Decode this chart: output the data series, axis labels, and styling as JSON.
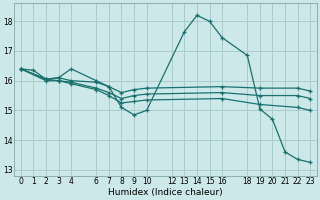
{
  "background_color": "#cce8e8",
  "grid_color": "#aacccc",
  "line_color": "#1a7070",
  "marker_color": "#1a7070",
  "xlabel": "Humidex (Indice chaleur)",
  "xlim": [
    -0.5,
    23.5
  ],
  "ylim": [
    12.8,
    18.6
  ],
  "yticks": [
    13,
    14,
    15,
    16,
    17,
    18
  ],
  "xtick_positions": [
    0,
    1,
    2,
    3,
    4,
    6,
    7,
    8,
    9,
    10,
    12,
    13,
    14,
    15,
    16,
    18,
    19,
    20,
    21,
    22,
    23
  ],
  "xtick_labels": [
    "0",
    "1",
    "2",
    "3",
    "4",
    "6",
    "7",
    "8",
    "9",
    "10",
    "12",
    "13",
    "14",
    "15",
    "16",
    "18",
    "19",
    "20",
    "21",
    "22",
    "23"
  ],
  "lines": [
    {
      "x": [
        0,
        1,
        2,
        3,
        4,
        6,
        7,
        8,
        9,
        10,
        13,
        14,
        15,
        16,
        18,
        19,
        20,
        21,
        22,
        23
      ],
      "y": [
        16.4,
        16.35,
        16.05,
        16.1,
        16.4,
        16.0,
        15.8,
        15.1,
        14.85,
        15.0,
        17.65,
        18.2,
        18.0,
        17.45,
        16.85,
        15.05,
        14.7,
        13.6,
        13.35,
        13.25
      ]
    },
    {
      "x": [
        0,
        2,
        3,
        4,
        6,
        7,
        8,
        9,
        10,
        16,
        19,
        22,
        23
      ],
      "y": [
        16.4,
        16.05,
        16.1,
        16.0,
        15.95,
        15.8,
        15.6,
        15.7,
        15.75,
        15.8,
        15.75,
        15.75,
        15.65
      ]
    },
    {
      "x": [
        0,
        2,
        3,
        4,
        6,
        7,
        8,
        9,
        10,
        16,
        19,
        22,
        23
      ],
      "y": [
        16.4,
        16.05,
        16.0,
        15.95,
        15.75,
        15.6,
        15.4,
        15.5,
        15.55,
        15.6,
        15.5,
        15.5,
        15.4
      ]
    },
    {
      "x": [
        0,
        2,
        3,
        4,
        6,
        7,
        8,
        9,
        10,
        16,
        19,
        22,
        23
      ],
      "y": [
        16.4,
        16.0,
        16.0,
        15.9,
        15.7,
        15.5,
        15.25,
        15.3,
        15.35,
        15.4,
        15.2,
        15.1,
        15.0
      ]
    }
  ]
}
